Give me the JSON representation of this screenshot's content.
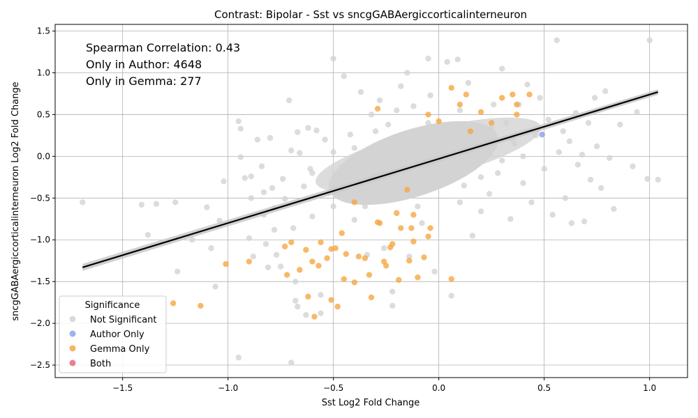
{
  "chart_data": {
    "type": "scatter",
    "title": "Contrast: Bipolar - Sst vs sncgGABAergiccorticalinterneuron",
    "xlabel": "Sst Log2 Fold Change",
    "ylabel": "sncgGABAergiccorticalinterneuron Log2 Fold Change",
    "xlim": [
      -1.82,
      1.18
    ],
    "ylim": [
      -2.65,
      1.58
    ],
    "xticks": [
      -1.5,
      -1.0,
      -0.5,
      0.0,
      0.5,
      1.0
    ],
    "xtick_labels": [
      "−1.5",
      "−1.0",
      "−0.5",
      "0.0",
      "0.5",
      "1.0"
    ],
    "yticks": [
      -2.5,
      -2.0,
      -1.5,
      -1.0,
      -0.5,
      0.0,
      0.5,
      1.0,
      1.5
    ],
    "ytick_labels": [
      "−2.5",
      "−2.0",
      "−1.5",
      "−1.0",
      "−0.5",
      "0.0",
      "0.5",
      "1.0",
      "1.5"
    ],
    "grid": true,
    "annotations": [
      "Spearman Correlation: 0.43",
      "Only in Author: 4648",
      "Only in Gemma: 277"
    ],
    "legend": {
      "title": "Significance",
      "position": "lower-left",
      "entries": [
        {
          "label": "Not Significant",
          "color": "#d3d3d3"
        },
        {
          "label": "Author Only",
          "color": "#8ea4e8"
        },
        {
          "label": "Gemma Only",
          "color": "#f5a742"
        },
        {
          "label": "Both",
          "color": "#e5687f"
        }
      ]
    },
    "regression_line": {
      "x": [
        -1.69,
        1.04
      ],
      "y": [
        -1.33,
        0.77
      ],
      "color": "#000000"
    },
    "series": [
      {
        "name": "Not Significant",
        "color": "#d3d3d3",
        "points": [
          [
            -1.69,
            -0.55
          ],
          [
            -1.41,
            -0.58
          ],
          [
            -1.34,
            -0.57
          ],
          [
            -1.25,
            -0.55
          ],
          [
            -1.38,
            -0.94
          ],
          [
            -1.24,
            -1.38
          ],
          [
            -1.1,
            -0.61
          ],
          [
            -1.08,
            -1.1
          ],
          [
            -1.17,
            -1.0
          ],
          [
            -1.02,
            -0.3
          ],
          [
            -1.04,
            -0.77
          ],
          [
            -1.06,
            -1.56
          ],
          [
            -0.95,
            0.42
          ],
          [
            -0.94,
            0.33
          ],
          [
            -0.94,
            -0.01
          ],
          [
            -0.92,
            -0.26
          ],
          [
            -0.89,
            -0.24
          ],
          [
            -0.89,
            -0.5
          ],
          [
            -0.9,
            -0.98
          ],
          [
            -0.88,
            -1.2
          ],
          [
            -0.86,
            0.2
          ],
          [
            -0.84,
            -0.12
          ],
          [
            -0.83,
            -0.43
          ],
          [
            -0.83,
            -0.7
          ],
          [
            -0.82,
            -1.05
          ],
          [
            -0.81,
            -1.33
          ],
          [
            -0.8,
            0.22
          ],
          [
            -0.79,
            -0.38
          ],
          [
            -0.78,
            -0.62
          ],
          [
            -0.78,
            -0.88
          ],
          [
            -0.77,
            -1.18
          ],
          [
            -0.75,
            -1.32
          ],
          [
            -0.74,
            -0.27
          ],
          [
            -0.73,
            -0.51
          ],
          [
            -0.71,
            0.67
          ],
          [
            -0.7,
            0.07
          ],
          [
            -0.69,
            -0.86
          ],
          [
            -0.68,
            -1.5
          ],
          [
            -0.68,
            -1.73
          ],
          [
            -0.67,
            -1.8
          ],
          [
            -0.67,
            0.29
          ],
          [
            -0.66,
            0.04
          ],
          [
            -0.64,
            -0.36
          ],
          [
            -0.63,
            -1.9
          ],
          [
            -0.62,
            0.34
          ],
          [
            -0.61,
            -0.15
          ],
          [
            -0.6,
            -0.72
          ],
          [
            -0.58,
            0.31
          ],
          [
            -0.56,
            -1.66
          ],
          [
            -0.56,
            -1.88
          ],
          [
            -0.54,
            0.2
          ],
          [
            -0.52,
            -0.44
          ],
          [
            -0.5,
            -0.6
          ],
          [
            -0.5,
            1.17
          ],
          [
            -0.45,
            0.96
          ],
          [
            -0.42,
            0.26
          ],
          [
            -0.4,
            -0.76
          ],
          [
            -0.37,
            0.77
          ],
          [
            -0.34,
            -1.18
          ],
          [
            -0.32,
            0.5
          ],
          [
            -0.3,
            -0.32
          ],
          [
            -0.28,
            0.67
          ],
          [
            -0.26,
            -1.1
          ],
          [
            -0.24,
            0.38
          ],
          [
            -0.22,
            -1.62
          ],
          [
            -0.22,
            -1.79
          ],
          [
            -0.18,
            0.84
          ],
          [
            -0.15,
            1.0
          ],
          [
            -0.14,
            -1.2
          ],
          [
            -0.12,
            0.6
          ],
          [
            -0.1,
            -0.25
          ],
          [
            -0.08,
            -0.8
          ],
          [
            -0.05,
            1.17
          ],
          [
            -0.04,
            0.73
          ],
          [
            -0.02,
            -1.38
          ],
          [
            0.04,
            1.13
          ],
          [
            0.09,
            1.16
          ],
          [
            0.06,
            -1.67
          ],
          [
            0.1,
            0.55
          ],
          [
            0.12,
            -0.35
          ],
          [
            0.14,
            0.88
          ],
          [
            0.16,
            -0.95
          ],
          [
            0.18,
            0.3
          ],
          [
            0.2,
            -0.66
          ],
          [
            0.22,
            0.12
          ],
          [
            0.24,
            -0.45
          ],
          [
            0.26,
            0.62
          ],
          [
            0.28,
            -0.2
          ],
          [
            0.3,
            1.05
          ],
          [
            0.32,
            0.4
          ],
          [
            0.34,
            -0.75
          ],
          [
            0.36,
            0.15
          ],
          [
            0.38,
            0.62
          ],
          [
            0.4,
            -0.32
          ],
          [
            0.42,
            0.86
          ],
          [
            0.44,
            -0.55
          ],
          [
            0.46,
            0.25
          ],
          [
            0.48,
            0.7
          ],
          [
            0.5,
            -0.15
          ],
          [
            0.52,
            0.44
          ],
          [
            0.54,
            -0.7
          ],
          [
            0.56,
            1.39
          ],
          [
            0.57,
            0.05
          ],
          [
            0.59,
            0.3
          ],
          [
            0.6,
            -0.5
          ],
          [
            0.62,
            0.18
          ],
          [
            0.63,
            -0.8
          ],
          [
            0.65,
            0.52
          ],
          [
            0.66,
            -0.1
          ],
          [
            0.68,
            0.02
          ],
          [
            0.69,
            -0.78
          ],
          [
            0.71,
            0.4
          ],
          [
            0.72,
            -0.28
          ],
          [
            0.74,
            0.7
          ],
          [
            0.75,
            0.12
          ],
          [
            0.77,
            -0.38
          ],
          [
            0.79,
            0.78
          ],
          [
            0.81,
            -0.02
          ],
          [
            0.83,
            -0.63
          ],
          [
            0.86,
            0.38
          ],
          [
            0.92,
            -0.12
          ],
          [
            0.94,
            0.53
          ],
          [
            0.99,
            -0.27
          ],
          [
            1.0,
            1.39
          ],
          [
            1.04,
            -0.28
          ],
          [
            -0.95,
            -2.41
          ],
          [
            -0.7,
            -2.47
          ],
          [
            -0.35,
            -0.15
          ],
          [
            -0.2,
            -0.1
          ],
          [
            0.0,
            0.0
          ],
          [
            0.05,
            -0.3
          ],
          [
            -0.4,
            0.1
          ],
          [
            -0.15,
            0.25
          ],
          [
            0.15,
            0.05
          ],
          [
            -0.25,
            -0.45
          ],
          [
            0.2,
            -0.25
          ],
          [
            -0.45,
            -0.3
          ],
          [
            -0.05,
            0.4
          ],
          [
            0.1,
            -0.55
          ],
          [
            -0.3,
            0.3
          ],
          [
            0.25,
            0.35
          ],
          [
            -0.6,
            -0.2
          ],
          [
            -0.1,
            -0.6
          ],
          [
            0.3,
            -0.05
          ],
          [
            -0.35,
            -0.6
          ],
          [
            0.35,
            0.2
          ],
          [
            -0.2,
            0.55
          ],
          [
            0.08,
            0.15
          ],
          [
            -0.5,
            0.05
          ],
          [
            0.4,
            0.0
          ]
        ]
      },
      {
        "name": "Gemma Only",
        "color": "#f5a742",
        "points": [
          [
            -1.26,
            -1.76
          ],
          [
            -1.13,
            -1.79
          ],
          [
            -1.01,
            -1.29
          ],
          [
            -0.9,
            -1.26
          ],
          [
            -0.73,
            -1.08
          ],
          [
            -0.72,
            -1.42
          ],
          [
            -0.7,
            -1.03
          ],
          [
            -0.66,
            -1.36
          ],
          [
            -0.63,
            -1.12
          ],
          [
            -0.62,
            -1.68
          ],
          [
            -0.6,
            -1.26
          ],
          [
            -0.59,
            -1.92
          ],
          [
            -0.57,
            -1.31
          ],
          [
            -0.56,
            -1.03
          ],
          [
            -0.53,
            -1.22
          ],
          [
            -0.51,
            -1.11
          ],
          [
            -0.51,
            -1.72
          ],
          [
            -0.49,
            -1.1
          ],
          [
            -0.48,
            -1.8
          ],
          [
            -0.46,
            -0.92
          ],
          [
            -0.45,
            -1.47
          ],
          [
            -0.44,
            -1.17
          ],
          [
            -0.4,
            -1.51
          ],
          [
            -0.38,
            -1.2
          ],
          [
            -0.35,
            -1.22
          ],
          [
            -0.33,
            -1.42
          ],
          [
            -0.32,
            -1.69
          ],
          [
            -0.29,
            -0.79
          ],
          [
            -0.26,
            -1.26
          ],
          [
            -0.25,
            -1.31
          ],
          [
            -0.23,
            -1.09
          ],
          [
            -0.22,
            -1.05
          ],
          [
            -0.19,
            -1.48
          ],
          [
            -0.18,
            -0.86
          ],
          [
            -0.14,
            -1.25
          ],
          [
            -0.13,
            -0.86
          ],
          [
            -0.12,
            -1.02
          ],
          [
            -0.1,
            -1.45
          ],
          [
            -0.07,
            -1.21
          ],
          [
            -0.05,
            -0.96
          ],
          [
            -0.04,
            -0.86
          ],
          [
            0.06,
            -1.47
          ],
          [
            -0.29,
            0.57
          ],
          [
            0.06,
            0.82
          ],
          [
            0.1,
            0.62
          ],
          [
            0.13,
            0.74
          ],
          [
            0.3,
            0.7
          ],
          [
            0.35,
            0.74
          ],
          [
            0.37,
            0.62
          ],
          [
            0.37,
            0.5
          ],
          [
            0.43,
            0.74
          ],
          [
            0.2,
            0.53
          ],
          [
            0.25,
            0.4
          ],
          [
            0.0,
            0.42
          ],
          [
            -0.05,
            0.5
          ],
          [
            0.15,
            0.3
          ],
          [
            -0.2,
            -0.68
          ],
          [
            -0.28,
            -0.8
          ],
          [
            -0.12,
            -0.7
          ],
          [
            -0.4,
            -0.55
          ],
          [
            -0.15,
            -0.4
          ]
        ]
      },
      {
        "name": "Author Only",
        "color": "#8ea4e8",
        "points": [
          [
            0.49,
            0.26
          ]
        ]
      },
      {
        "name": "Both",
        "color": "#e5687f",
        "points": []
      }
    ]
  }
}
